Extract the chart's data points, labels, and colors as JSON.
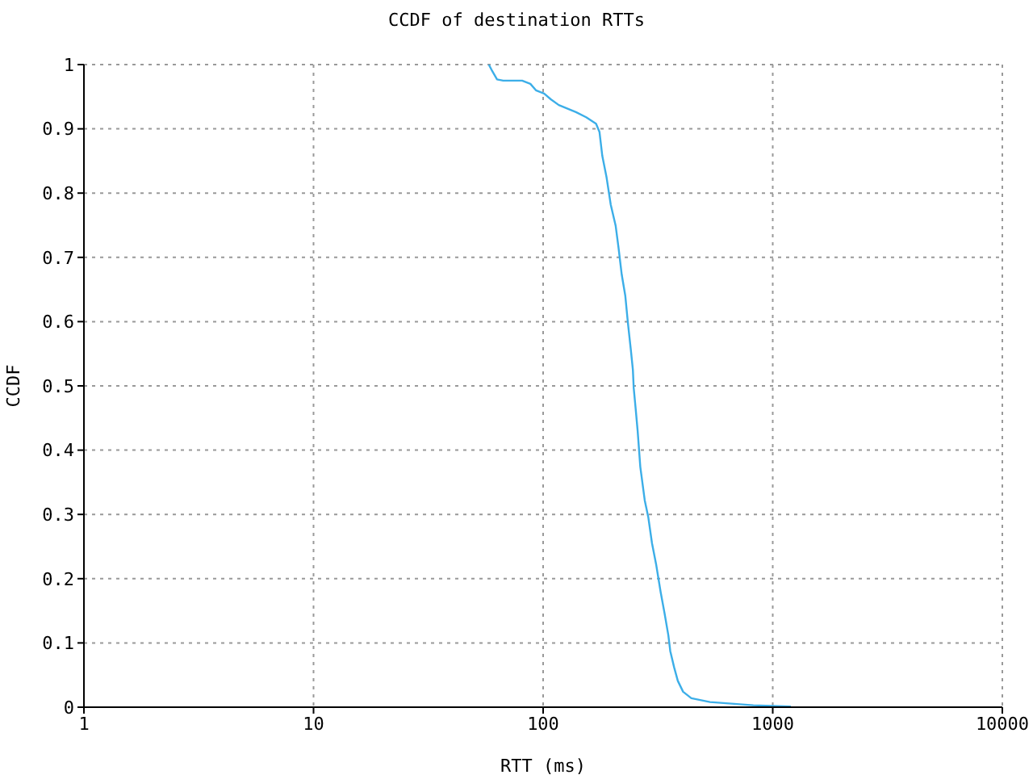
{
  "chart_data": {
    "type": "line",
    "title": "CCDF of destination RTTs",
    "xlabel": "RTT (ms)",
    "ylabel": "CCDF",
    "log": "x",
    "xlim": [
      1,
      10000
    ],
    "xticks": [
      1,
      10,
      100,
      1000,
      10000
    ],
    "ylim": [
      0,
      1
    ],
    "yticks": [
      0,
      0.1,
      0.2,
      0.3,
      0.4,
      0.5,
      0.6,
      0.7,
      0.8,
      0.9,
      1
    ],
    "grid": true,
    "marker": "none",
    "line_style": "solid",
    "series": [
      {
        "color": "#3caee8",
        "x": [
          58,
          60,
          63,
          67,
          81,
          88,
          93,
          101,
          108,
          117,
          139,
          154,
          170,
          176,
          181,
          189,
          197,
          207,
          213,
          220,
          228,
          234,
          241,
          246,
          248,
          253,
          258,
          265,
          277,
          287,
          298,
          311,
          325,
          338,
          351,
          358,
          372,
          386,
          407,
          442,
          533,
          823,
          1200
        ],
        "values": [
          1,
          0.99,
          0.977,
          0.975,
          0.975,
          0.97,
          0.96,
          0.955,
          0.946,
          0.937,
          0.926,
          0.918,
          0.908,
          0.895,
          0.858,
          0.824,
          0.782,
          0.749,
          0.715,
          0.673,
          0.64,
          0.598,
          0.556,
          0.525,
          0.497,
          0.464,
          0.43,
          0.374,
          0.322,
          0.296,
          0.255,
          0.221,
          0.179,
          0.146,
          0.112,
          0.087,
          0.062,
          0.041,
          0.024,
          0.014,
          0.008,
          0.003,
          0.001
        ]
      }
    ]
  }
}
